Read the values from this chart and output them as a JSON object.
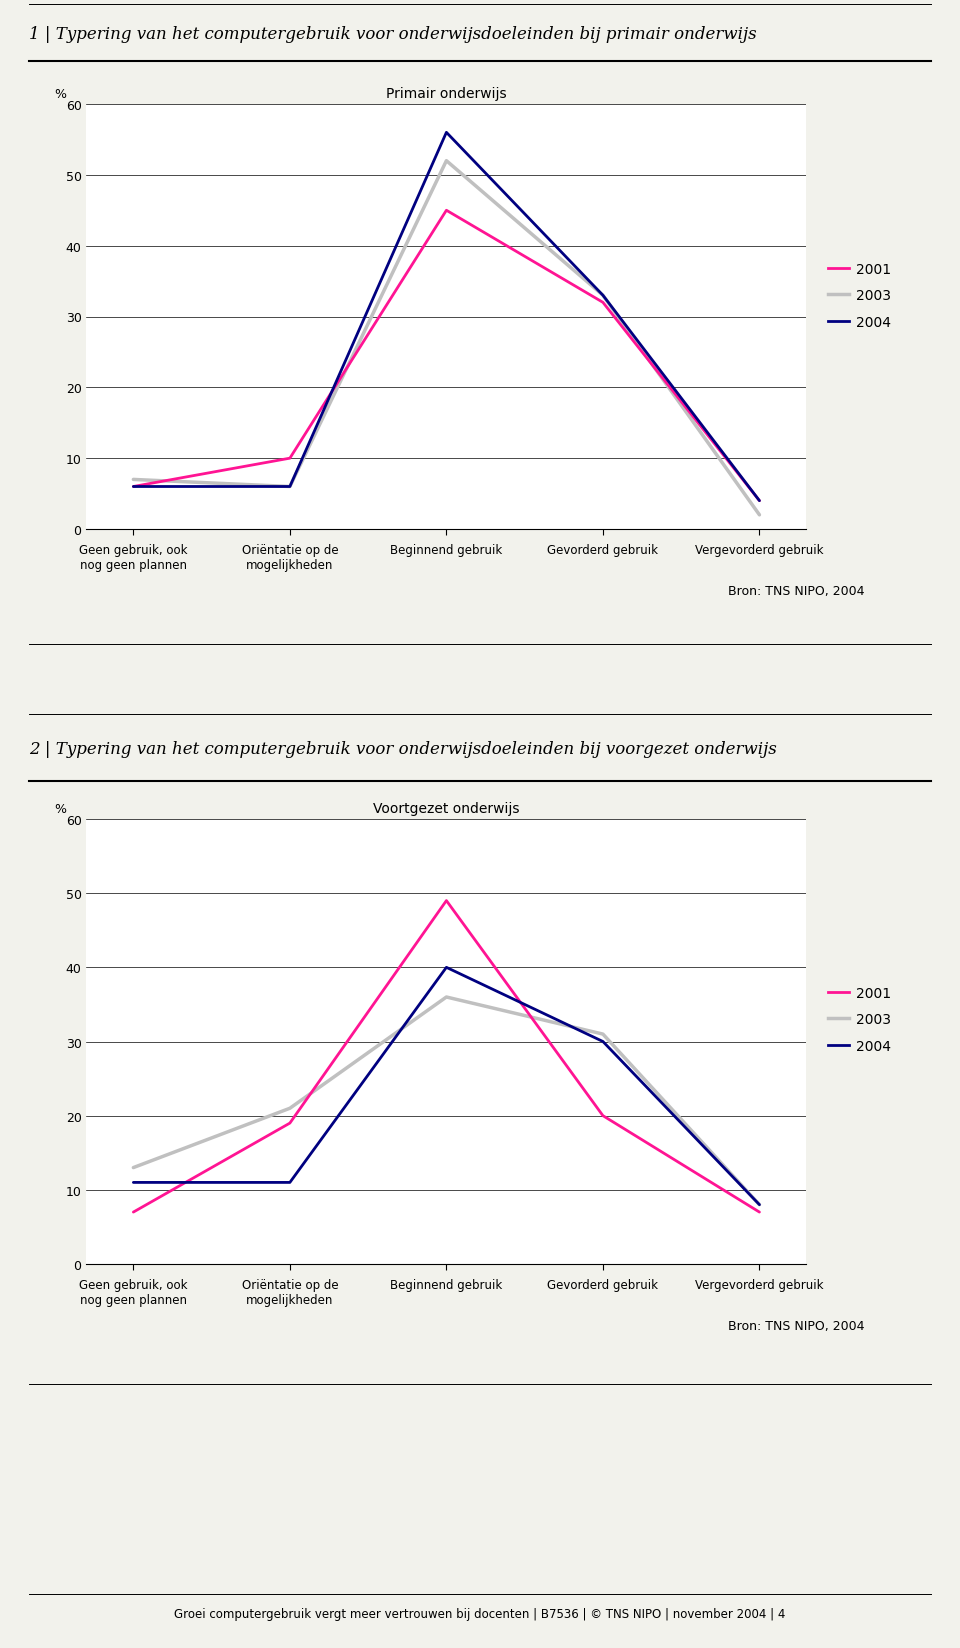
{
  "chart1": {
    "title_section": "1 | Typering van het computergebruik voor onderwijsdoeleinden bij primair onderwijs",
    "subtitle": "Primair onderwijs",
    "ylabel": "%",
    "ylim": [
      0,
      60
    ],
    "yticks": [
      0,
      10,
      20,
      30,
      40,
      50,
      60
    ],
    "categories": [
      "Geen gebruik, ook\nnog geen plannen",
      "Oriëntatie op de\nmogelijkheden",
      "Beginnend gebruik",
      "Gevorderd gebruik",
      "Vergevorderd gebruik"
    ],
    "series": {
      "2001": [
        6,
        10,
        45,
        32,
        4
      ],
      "2003": [
        7,
        6,
        52,
        33,
        2
      ],
      "2004": [
        6,
        6,
        56,
        33,
        4
      ]
    },
    "colors": {
      "2001": "#FF1493",
      "2003": "#C0C0C0",
      "2004": "#000080"
    },
    "source": "Bron: TNS NIPO, 2004"
  },
  "chart2": {
    "title_section": "2 | Typering van het computergebruik voor onderwijsdoeleinden bij voorgezet onderwijs",
    "subtitle": "Voortgezet onderwijs",
    "ylabel": "%",
    "ylim": [
      0,
      60
    ],
    "yticks": [
      0,
      10,
      20,
      30,
      40,
      50,
      60
    ],
    "categories": [
      "Geen gebruik, ook\nnog geen plannen",
      "Oriëntatie op de\nmogelijkheden",
      "Beginnend gebruik",
      "Gevorderd gebruik",
      "Vergevorderd gebruik"
    ],
    "series": {
      "2001": [
        7,
        19,
        49,
        20,
        7
      ],
      "2003": [
        13,
        21,
        36,
        31,
        8
      ],
      "2004": [
        11,
        11,
        40,
        30,
        8
      ]
    },
    "colors": {
      "2001": "#FF1493",
      "2003": "#C0C0C0",
      "2004": "#000080"
    },
    "source": "Bron: TNS NIPO, 2004"
  },
  "footer": "Groei computergebruik vergt meer vertrouwen bij docenten | B7536 | © TNS NIPO | november 2004 | 4",
  "bg_color": "#F2F2EC",
  "line_widths": {
    "2001": 2.0,
    "2003": 2.5,
    "2004": 2.0
  }
}
